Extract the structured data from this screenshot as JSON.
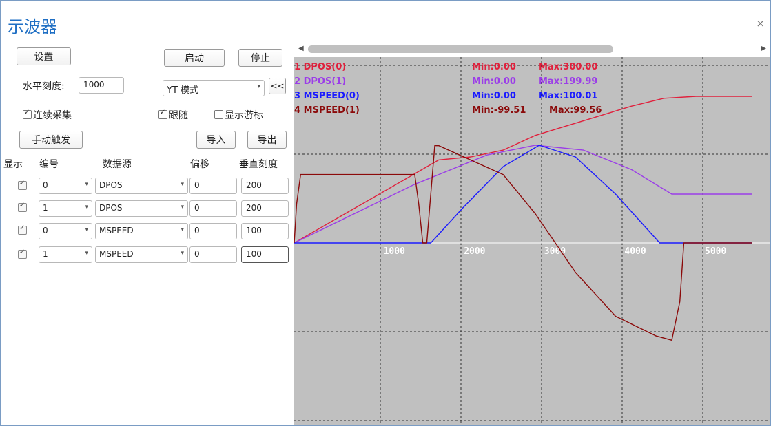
{
  "window": {
    "title": "示波器",
    "close_label": "×"
  },
  "toolbar": {
    "settings": "设置",
    "start": "启动",
    "stop": "停止",
    "horizontal_scale_label": "水平刻度:",
    "horizontal_scale_value": "1000",
    "mode_value": "YT 模式",
    "collapse": "<<",
    "continuous": "连续采集",
    "follow": "跟随",
    "show_cursor": "显示游标",
    "manual_trigger": "手动触发",
    "import": "导入",
    "export": "导出"
  },
  "table": {
    "headers": {
      "show": "显示",
      "number": "编号",
      "source": "数据源",
      "offset": "偏移",
      "vscale": "垂直刻度"
    },
    "rows": [
      {
        "number": "0",
        "source": "DPOS",
        "offset": "0",
        "vscale": "200"
      },
      {
        "number": "1",
        "source": "DPOS",
        "offset": "0",
        "vscale": "200"
      },
      {
        "number": "0",
        "source": "MSPEED",
        "offset": "0",
        "vscale": "100"
      },
      {
        "number": "1",
        "source": "MSPEED",
        "offset": "0",
        "vscale": "100"
      }
    ]
  },
  "chart_data": {
    "type": "line",
    "xlabel": "",
    "ylabel": "",
    "x_ticks": [
      "1000",
      "2000",
      "3000",
      "4000",
      "5000"
    ],
    "xlim": [
      0,
      5700
    ],
    "grid": true,
    "legend_position": "top-left",
    "series": [
      {
        "name": "1 DPOS(0)",
        "min_label": "Min:0.00",
        "max_label": "Max:300.00",
        "color": "#e0203c",
        "x": [
          0,
          1800,
          2200,
          2600,
          3000,
          3400,
          3800,
          4200,
          4600,
          5000,
          5700
        ],
        "y": [
          0,
          170,
          176,
          190,
          220,
          240,
          260,
          280,
          296,
          300,
          300
        ]
      },
      {
        "name": "2 DPOS(1)",
        "min_label": "Min:0.00",
        "max_label": "Max:199.99",
        "color": "#9b3de8",
        "x": [
          0,
          1500,
          2400,
          3000,
          3600,
          4200,
          4700,
          5700
        ],
        "y": [
          0,
          120,
          180,
          200,
          190,
          150,
          100,
          100
        ]
      },
      {
        "name": "3 MSPEED(0)",
        "min_label": "Min:0.00",
        "max_label": "Max:100.01",
        "color": "#1a1aff",
        "x": [
          0,
          1550,
          1700,
          2100,
          2600,
          3050,
          3500,
          4000,
          4550,
          5700
        ],
        "y": [
          0,
          0,
          0,
          36,
          78,
          100,
          88,
          50,
          0,
          0
        ]
      },
      {
        "name": "4 MSPEED(1)",
        "min_label": "Min:-99.51",
        "max_label": "Max:99.56",
        "color": "#8b0a0a",
        "x": [
          0,
          30,
          80,
          150,
          1500,
          1550,
          1600,
          1650,
          1700,
          1750,
          1800,
          2600,
          3000,
          3500,
          4000,
          4500,
          4700,
          4800,
          4850,
          5700
        ],
        "y": [
          0,
          40,
          70,
          70,
          70,
          40,
          0,
          0,
          50,
          99.56,
          99.5,
          70,
          30,
          -30,
          -75,
          -95,
          -99.51,
          -60,
          0,
          0
        ]
      }
    ]
  }
}
